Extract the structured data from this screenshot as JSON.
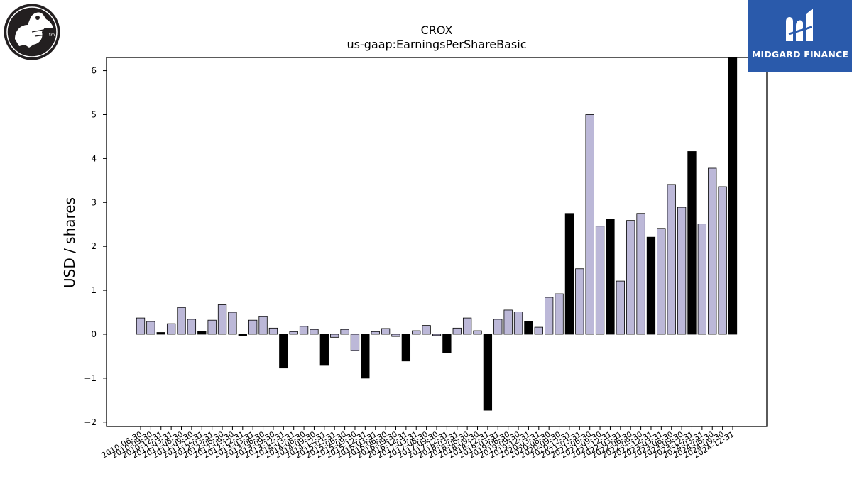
{
  "branding": {
    "left_logo_icon": "crocodile-mascot-icon",
    "right_logo_icon": "midgard-finance-mark-icon",
    "right_logo_text": "MIDGARD FINANCE",
    "right_logo_bg": "#2a5aab"
  },
  "chart_data": {
    "type": "bar",
    "title": "CROX",
    "subtitle": "us-gaap:EarningsPerShareBasic",
    "ylabel": "USD / shares",
    "xlabel": "",
    "ylim": [
      -2.1,
      6.3
    ],
    "yticks": [
      -2,
      -1,
      0,
      1,
      2,
      3,
      4,
      5,
      6
    ],
    "ytick_labels": [
      "−2",
      "−1",
      "0",
      "1",
      "2",
      "3",
      "4",
      "5",
      "6"
    ],
    "grid": false,
    "colors": {
      "quarter": "#bcb8d8",
      "annual": "#000000",
      "edge": "#000000"
    },
    "categories": [
      "2010-06-30",
      "2010-09-30",
      "2010-12-31",
      "2011-03-31",
      "2011-06-30",
      "2011-09-30",
      "2011-12-31",
      "2012-03-31",
      "2012-06-30",
      "2012-09-30",
      "2012-12-31",
      "2013-03-31",
      "2013-06-30",
      "2013-09-30",
      "2013-12-31",
      "2014-03-31",
      "2014-06-30",
      "2014-09-30",
      "2014-12-31",
      "2015-03-31",
      "2015-06-30",
      "2015-09-30",
      "2015-12-31",
      "2016-03-31",
      "2016-06-30",
      "2016-09-30",
      "2016-12-31",
      "2017-03-31",
      "2017-06-30",
      "2017-09-30",
      "2017-12-31",
      "2018-03-31",
      "2018-06-30",
      "2018-09-30",
      "2018-12-31",
      "2019-03-31",
      "2019-06-30",
      "2019-09-30",
      "2019-12-31",
      "2020-03-31",
      "2020-06-30",
      "2020-09-30",
      "2020-12-31",
      "2021-03-31",
      "2021-06-30",
      "2021-09-30",
      "2021-12-31",
      "2022-03-31",
      "2022-06-30",
      "2022-09-30",
      "2022-12-31",
      "2023-03-31",
      "2023-06-30",
      "2023-09-30",
      "2023-12-31",
      "2024-03-31",
      "2024-06-30",
      "2024-09-30",
      "2024-12-31"
    ],
    "values": [
      0.37,
      0.29,
      0.04,
      0.24,
      0.61,
      0.34,
      0.06,
      0.32,
      0.67,
      0.5,
      -0.03,
      0.32,
      0.4,
      0.14,
      -0.77,
      0.06,
      0.18,
      0.11,
      -0.71,
      -0.07,
      0.11,
      -0.37,
      -1.0,
      0.06,
      0.13,
      -0.05,
      -0.61,
      0.08,
      0.2,
      -0.03,
      -0.42,
      0.14,
      0.37,
      0.08,
      -1.73,
      0.34,
      0.55,
      0.51,
      0.29,
      0.16,
      0.84,
      0.92,
      2.75,
      1.49,
      5.0,
      2.46,
      2.62,
      1.21,
      2.59,
      2.75,
      2.21,
      2.41,
      3.41,
      2.89,
      4.16,
      2.51,
      3.78,
      3.36,
      6.3
    ],
    "is_annual": [
      false,
      false,
      true,
      false,
      false,
      false,
      true,
      false,
      false,
      false,
      true,
      false,
      false,
      false,
      true,
      false,
      false,
      false,
      true,
      false,
      false,
      false,
      true,
      false,
      false,
      false,
      true,
      false,
      false,
      false,
      true,
      false,
      false,
      false,
      true,
      false,
      false,
      false,
      true,
      false,
      false,
      false,
      true,
      false,
      false,
      false,
      true,
      false,
      false,
      false,
      true,
      false,
      false,
      false,
      true,
      false,
      false,
      false,
      true
    ]
  }
}
